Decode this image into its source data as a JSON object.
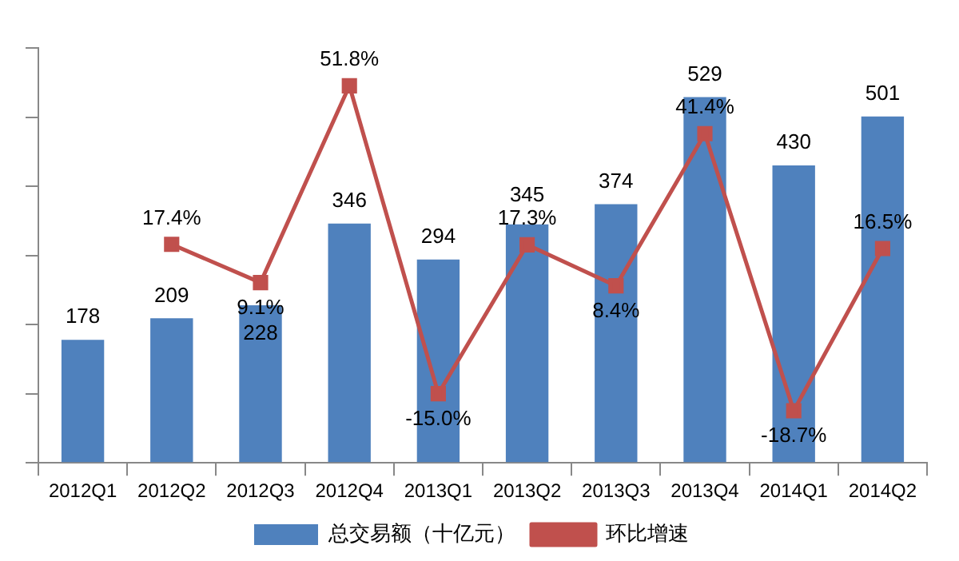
{
  "chart_data": {
    "type": "bar",
    "categories": [
      "2012Q1",
      "2012Q2",
      "2012Q3",
      "2012Q4",
      "2013Q1",
      "2013Q2",
      "2013Q3",
      "2013Q4",
      "2014Q1",
      "2014Q2"
    ],
    "series": [
      {
        "name": "总交易额（十亿元）",
        "color": "#4f81bd",
        "values": [
          178,
          209,
          228,
          346,
          294,
          345,
          374,
          529,
          430,
          501
        ]
      },
      {
        "name": "环比增速",
        "type": "line",
        "axis": "y2",
        "color": "#c0504d",
        "marker": "square",
        "values": [
          null,
          17.4,
          9.1,
          51.8,
          -15.0,
          17.3,
          8.4,
          41.4,
          -18.7,
          16.5
        ],
        "value_labels": [
          null,
          "17.4%",
          "9.1%",
          "51.8%",
          "-15.0%",
          "17.3%",
          "8.4%",
          "41.4%",
          "-18.7%",
          "16.5%"
        ]
      }
    ],
    "data_labels": true,
    "ylim": [
      0,
      600
    ],
    "yticks": [
      {
        "value": 0,
        "label": null
      },
      {
        "value": 100,
        "label": null
      },
      {
        "value": 200,
        "label": null
      },
      {
        "value": 300,
        "label": null
      },
      {
        "value": 400,
        "label": null
      },
      {
        "value": 500,
        "label": null
      },
      {
        "value": 600,
        "label": null
      }
    ],
    "y2lim": [
      -30,
      60
    ],
    "tick_labels": "x",
    "grid": false,
    "legend": "bottom"
  }
}
